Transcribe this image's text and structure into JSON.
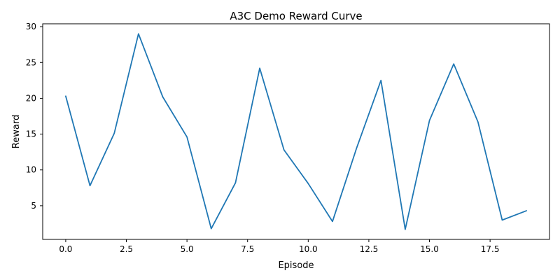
{
  "chart_data": {
    "type": "line",
    "title": "A3C Demo Reward Curve",
    "xlabel": "Episode",
    "ylabel": "Reward",
    "xlim": [
      -0.95,
      19.95
    ],
    "ylim": [
      0.3,
      30.4
    ],
    "x_ticks": [
      0.0,
      2.5,
      5.0,
      7.5,
      10.0,
      12.5,
      15.0,
      17.5
    ],
    "x_tick_labels": [
      "0.0",
      "2.5",
      "5.0",
      "7.5",
      "10.0",
      "12.5",
      "15.0",
      "17.5"
    ],
    "y_ticks": [
      5,
      10,
      15,
      20,
      25,
      30
    ],
    "y_tick_labels": [
      "5",
      "10",
      "15",
      "20",
      "25",
      "30"
    ],
    "grid": false,
    "series": [
      {
        "color": "#1f77b4",
        "x": [
          0,
          1,
          2,
          3,
          4,
          5,
          6,
          7,
          8,
          9,
          10,
          11,
          12,
          13,
          14,
          15,
          16,
          17,
          18,
          19
        ],
        "values": [
          20.3,
          7.8,
          15.1,
          29.0,
          20.2,
          14.6,
          1.8,
          8.2,
          24.2,
          12.8,
          8.1,
          2.8,
          13.1,
          22.5,
          1.7,
          16.9,
          24.8,
          16.7,
          3.0,
          4.3
        ]
      }
    ]
  }
}
